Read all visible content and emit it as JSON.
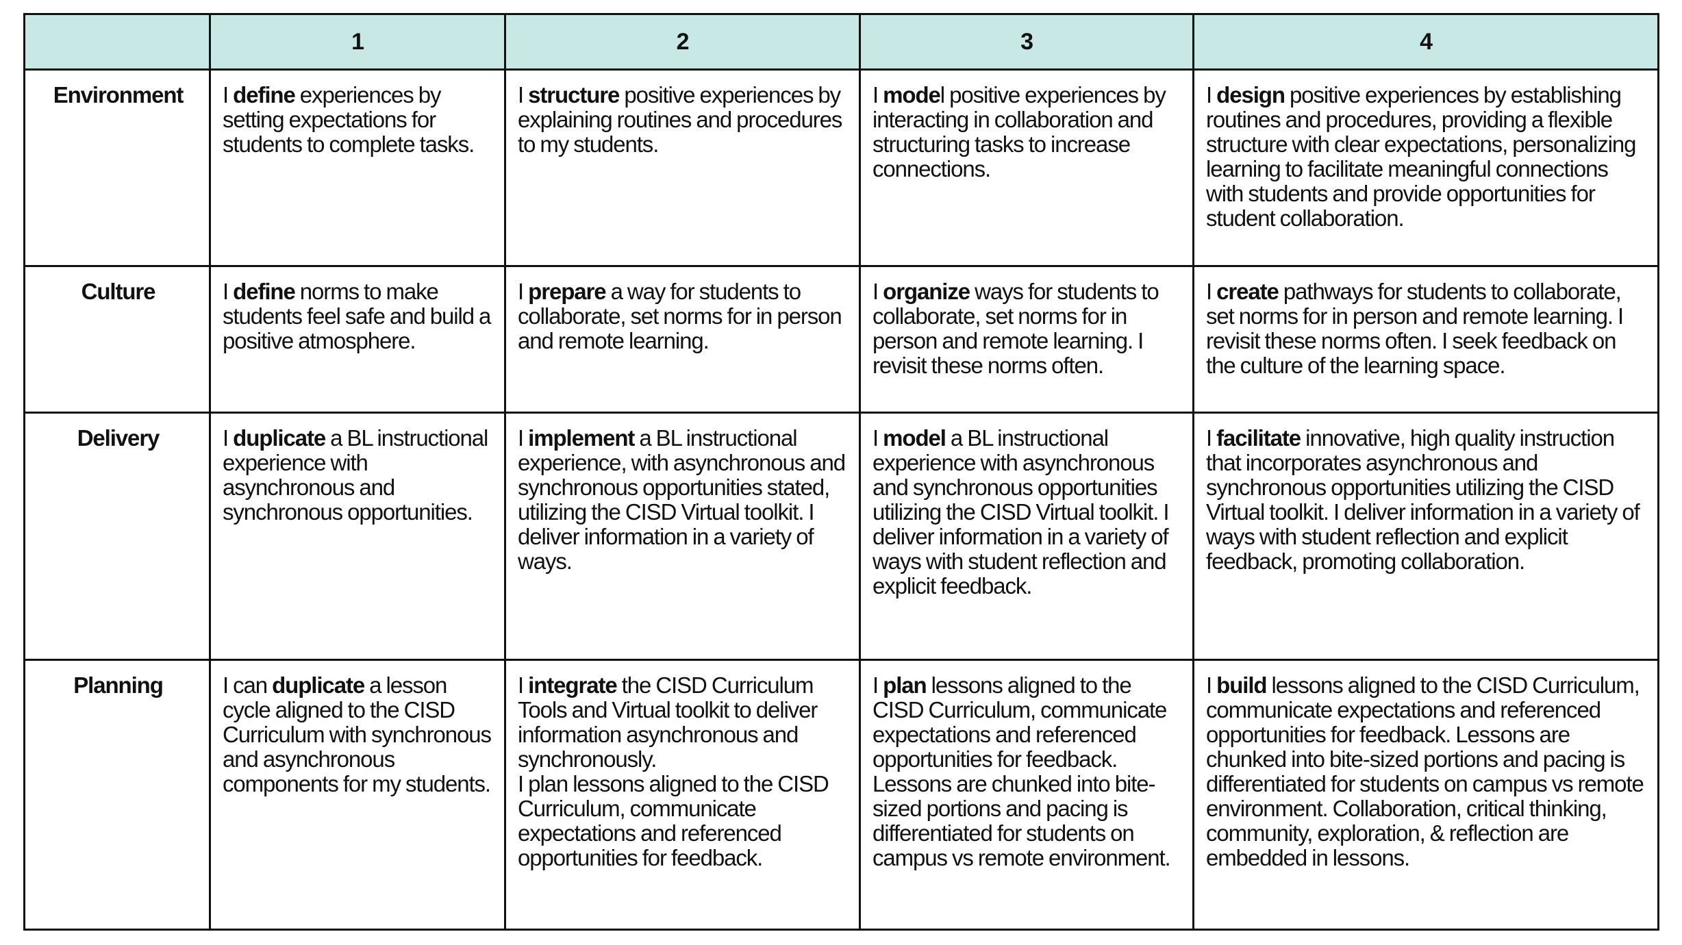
{
  "header": {
    "corner": "",
    "levels": [
      "1",
      "2",
      "3",
      "4"
    ]
  },
  "header_color": "#c8e8e6",
  "rows": [
    {
      "label": "Environment",
      "cells": [
        {
          "pre": "I ",
          "bold": "define",
          "post": " experiences by setting expectations for students to complete tasks.",
          "extra": ""
        },
        {
          "pre": "I ",
          "bold": "structure",
          "post": " positive experiences by explaining routines and procedures to my students.",
          "extra": ""
        },
        {
          "pre": "I ",
          "bold": "mode",
          "post": "l positive experiences by interacting in collaboration and structuring tasks to increase connections.",
          "extra": ""
        },
        {
          "pre": "I ",
          "bold": "design",
          "post": " positive experiences by establishing routines and procedures, providing a flexible structure with clear expectations, personalizing learning to facilitate meaningful connections with students and provide opportunities for student collaboration.",
          "extra": ""
        }
      ]
    },
    {
      "label": "Culture",
      "cells": [
        {
          "pre": "I ",
          "bold": "define",
          "post": " norms to make students feel safe and build a positive atmosphere.",
          "extra": ""
        },
        {
          "pre": "I ",
          "bold": "prepare",
          "post": " a way for students to collaborate, set norms for in person and remote learning.",
          "extra": ""
        },
        {
          "pre": "I ",
          "bold": "organize",
          "post": " ways for students to collaborate, set norms for in person and remote learning. I revisit these norms often.",
          "extra": ""
        },
        {
          "pre": "I ",
          "bold": "create",
          "post": " pathways for students to collaborate, set norms for in person and remote learning. I revisit these norms often. I seek feedback on the culture of the learning space.",
          "extra": ""
        }
      ]
    },
    {
      "label": "Delivery",
      "cells": [
        {
          "pre": "I ",
          "bold": "duplicate",
          "post": " a BL instructional experience with asynchronous and synchronous opportunities.",
          "extra": ""
        },
        {
          "pre": "I ",
          "bold": "implement",
          "post": " a BL instructional experience, with asynchronous and synchronous opportunities stated, utilizing the CISD Virtual toolkit. I deliver information in a variety of ways.",
          "extra": ""
        },
        {
          "pre": "I ",
          "bold": "model",
          "post": " a BL instructional experience with asynchronous and synchronous opportunities utilizing the CISD Virtual toolkit. I deliver information in a variety of ways with student reflection and explicit feedback.",
          "extra": ""
        },
        {
          "pre": "I ",
          "bold": "facilitate",
          "post": " innovative, high quality instruction that incorporates asynchronous and synchronous opportunities utilizing the CISD Virtual toolkit. I deliver information in a variety of ways with student reflection and explicit feedback, promoting collaboration.",
          "extra": ""
        }
      ]
    },
    {
      "label": "Planning",
      "cells": [
        {
          "pre": "I can ",
          "bold": "duplicate",
          "post": " a lesson cycle aligned to the CISD Curriculum with synchronous and asynchronous components for my students.",
          "extra": ""
        },
        {
          "pre": "I ",
          "bold": "integrate",
          "post": " the CISD Curriculum Tools and Virtual toolkit to deliver information asynchronous and synchronously.",
          "extra": "I plan lessons aligned to the CISD Curriculum, communicate expectations and referenced opportunities for feedback."
        },
        {
          "pre": "I ",
          "bold": "plan",
          "post": " lessons aligned to the CISD Curriculum, communicate expectations and referenced opportunities for feedback. Lessons are chunked into bite-sized portions and pacing is differentiated for students on campus vs remote environment.",
          "extra": ""
        },
        {
          "pre": "I ",
          "bold": "build",
          "post": " lessons aligned to the CISD Curriculum, communicate expectations and referenced  opportunities for feedback. Lessons are chunked into bite-sized portions and pacing is differentiated for students on campus vs remote environment. Collaboration, critical thinking, community, exploration, & reflection are embedded in lessons.",
          "extra": ""
        }
      ]
    }
  ]
}
